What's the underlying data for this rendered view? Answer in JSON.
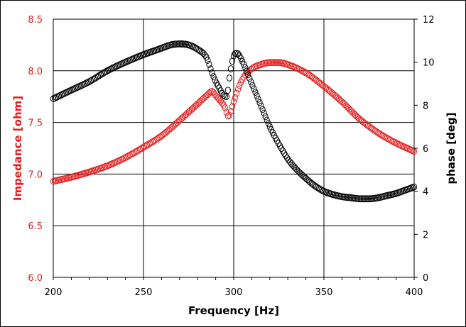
{
  "chart_data": {
    "type": "scatter",
    "title": "",
    "xlabel": "Frequency [Hz]",
    "ylabel_left": "Impedance [ohm]",
    "ylabel_right": "phase [deg]",
    "xlim": [
      200,
      400
    ],
    "ylim_left": [
      6.0,
      8.5
    ],
    "ylim_right": [
      0,
      12
    ],
    "x_ticks": [
      200,
      250,
      300,
      350,
      400
    ],
    "x_tick_labels": [
      "200",
      "250",
      "300",
      "350",
      "400"
    ],
    "y_left_ticks": [
      6.0,
      6.5,
      7.0,
      7.5,
      8.0,
      8.5
    ],
    "y_left_tick_labels": [
      "6.0",
      "6.5",
      "7.0",
      "7.5",
      "8.0",
      "8.5"
    ],
    "y_right_ticks": [
      0,
      2,
      4,
      6,
      8,
      10,
      12
    ],
    "y_right_tick_labels": [
      "0",
      "2",
      "4",
      "6",
      "8",
      "10",
      "12"
    ],
    "grid": true,
    "colors": {
      "impedance": "#e02020",
      "phase": "#000000",
      "grid": "#000000"
    },
    "series": [
      {
        "name": "Impedance",
        "axis": "left",
        "color": "#e02020",
        "marker": "open-circle",
        "x": [
          200,
          210,
          220,
          230,
          240,
          250,
          260,
          270,
          280,
          285,
          288,
          290,
          292,
          295,
          297,
          300,
          303,
          306,
          310,
          315,
          320,
          325,
          330,
          340,
          350,
          360,
          370,
          380,
          390,
          400
        ],
        "y": [
          6.93,
          6.97,
          7.02,
          7.08,
          7.16,
          7.26,
          7.37,
          7.52,
          7.68,
          7.76,
          7.8,
          7.76,
          7.72,
          7.65,
          7.56,
          7.7,
          7.85,
          7.95,
          8.02,
          8.06,
          8.08,
          8.08,
          8.06,
          7.98,
          7.85,
          7.7,
          7.53,
          7.4,
          7.3,
          7.22
        ]
      },
      {
        "name": "phase",
        "axis": "right",
        "color": "#000000",
        "marker": "open-circle",
        "x": [
          200,
          210,
          220,
          230,
          240,
          250,
          255,
          260,
          265,
          270,
          275,
          280,
          285,
          288,
          290,
          292,
          294,
          296,
          298,
          300,
          302,
          305,
          310,
          315,
          320,
          325,
          330,
          335,
          340,
          345,
          350,
          355,
          360,
          365,
          370,
          375,
          380,
          385,
          390,
          395,
          400
        ],
        "y": [
          8.3,
          8.7,
          9.1,
          9.6,
          10.0,
          10.35,
          10.5,
          10.65,
          10.8,
          10.85,
          10.8,
          10.6,
          10.2,
          9.5,
          9.1,
          8.8,
          8.5,
          8.4,
          9.5,
          10.3,
          10.4,
          10.0,
          9.0,
          8.0,
          7.0,
          6.2,
          5.5,
          5.0,
          4.6,
          4.25,
          4.0,
          3.85,
          3.75,
          3.7,
          3.65,
          3.65,
          3.7,
          3.8,
          3.9,
          4.05,
          4.2
        ]
      }
    ]
  }
}
